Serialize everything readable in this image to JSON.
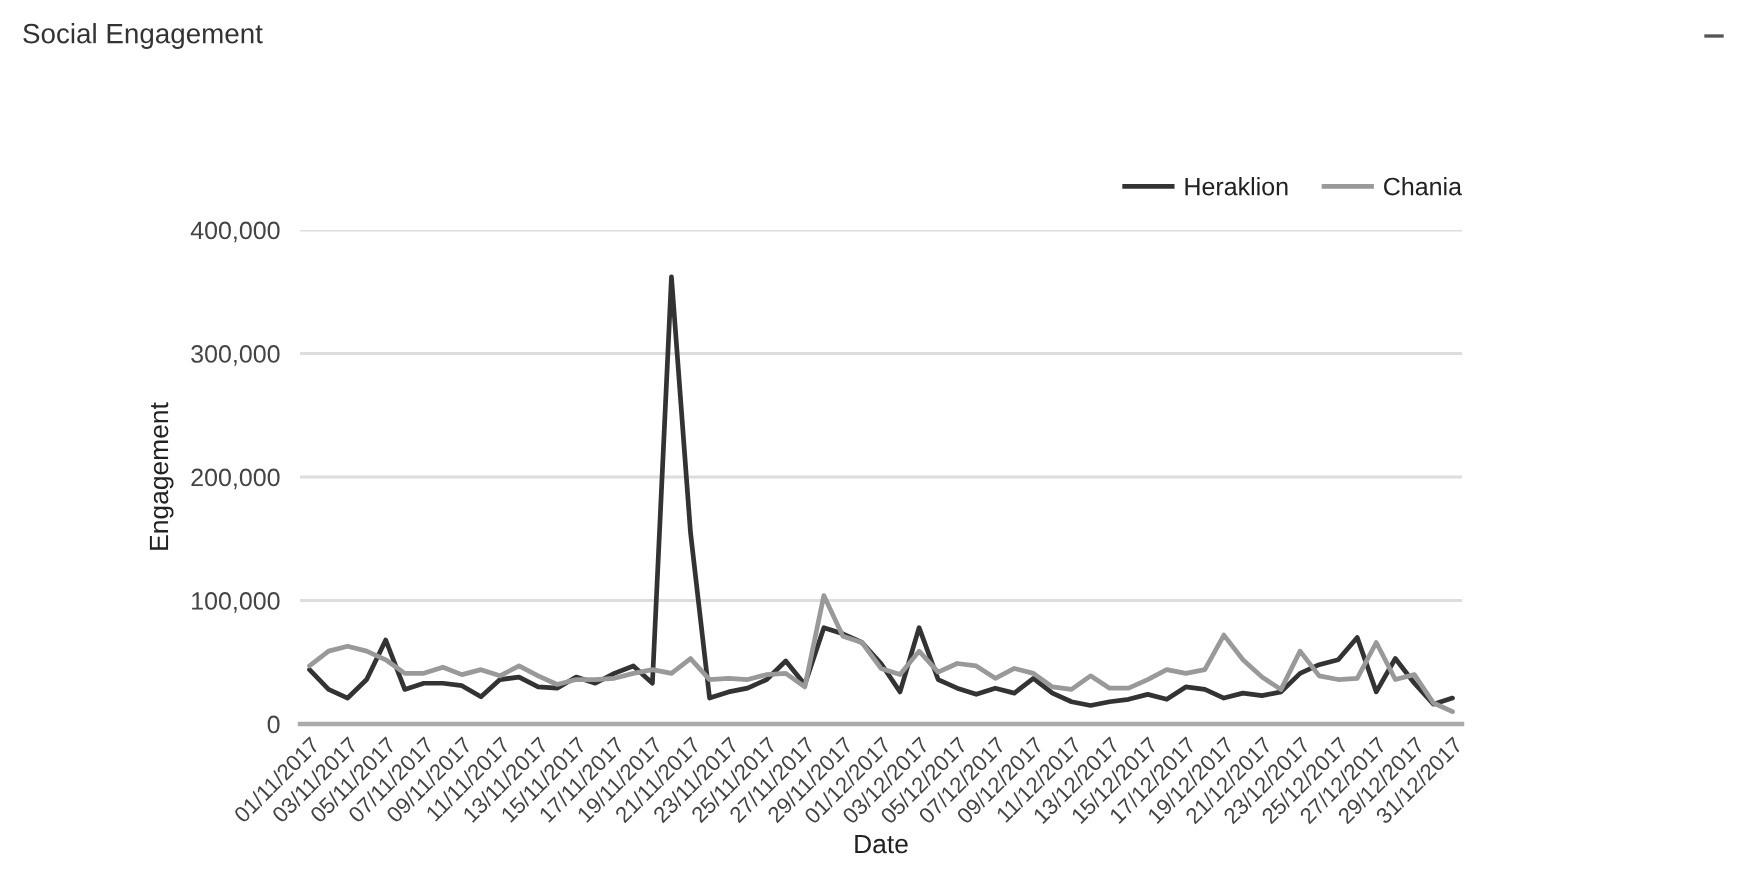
{
  "chart_data": {
    "type": "line",
    "title": "Social Engagement",
    "xlabel": "Date",
    "ylabel": "Engagement",
    "categories": [
      "01/11/2017",
      null,
      "03/11/2017",
      null,
      "05/11/2017",
      null,
      "07/11/2017",
      null,
      "09/11/2017",
      null,
      "11/11/2017",
      null,
      "13/11/2017",
      null,
      "15/11/2017",
      null,
      "17/11/2017",
      null,
      "19/11/2017",
      null,
      "21/11/2017",
      null,
      "23/11/2017",
      null,
      "25/11/2017",
      null,
      "27/11/2017",
      null,
      "29/11/2017",
      null,
      "01/12/2017",
      null,
      "03/12/2017",
      null,
      "05/12/2017",
      null,
      "07/12/2017",
      null,
      "09/12/2017",
      null,
      "11/12/2017",
      null,
      "13/12/2017",
      null,
      "15/12/2017",
      null,
      "17/12/2017",
      null,
      "19/12/2017",
      null,
      "21/12/2017",
      null,
      "23/12/2017",
      null,
      "25/12/2017",
      null,
      "27/12/2017",
      null,
      "29/12/2017",
      null,
      "31/12/2017"
    ],
    "series": [
      {
        "name": "Heraklion",
        "color": "#333333",
        "values": [
          44000,
          28000,
          21000,
          36000,
          68000,
          28000,
          33000,
          33000,
          31000,
          22000,
          36000,
          38000,
          30000,
          29000,
          38000,
          33000,
          41000,
          47000,
          33000,
          362000,
          155000,
          21000,
          26000,
          29000,
          36000,
          51000,
          32000,
          78000,
          73000,
          66000,
          49000,
          26000,
          78000,
          36000,
          29000,
          24000,
          29000,
          25000,
          37000,
          25000,
          18000,
          15000,
          18000,
          20000,
          24000,
          20000,
          30000,
          28000,
          21000,
          25000,
          23000,
          26000,
          41000,
          48000,
          52000,
          70000,
          26000,
          53000,
          33000,
          16000,
          21000
        ]
      },
      {
        "name": "Chania",
        "color": "#999999",
        "values": [
          47000,
          59000,
          63000,
          59000,
          52000,
          41000,
          41000,
          46000,
          40000,
          44000,
          39000,
          47000,
          39000,
          32000,
          36000,
          36000,
          37000,
          41000,
          44000,
          41000,
          53000,
          36000,
          37000,
          36000,
          40000,
          41000,
          30000,
          104000,
          71000,
          66000,
          45000,
          40000,
          59000,
          42000,
          49000,
          47000,
          37000,
          45000,
          41000,
          30000,
          28000,
          39000,
          29000,
          29000,
          36000,
          44000,
          41000,
          44000,
          72000,
          52000,
          38000,
          28000,
          59000,
          39000,
          36000,
          37000,
          66000,
          36000,
          40000,
          17000,
          10000
        ]
      }
    ],
    "ylim": [
      0,
      400000
    ],
    "yticks": [
      0,
      {
        "value": 100000,
        "label": "100,000"
      },
      {
        "value": 200000,
        "label": "200,000"
      },
      {
        "value": 300000,
        "label": "300,000"
      },
      {
        "value": 400000,
        "label": "400,000"
      }
    ],
    "grid": "y",
    "legend": "top right",
    "marker": "none",
    "line_style": "solid"
  }
}
